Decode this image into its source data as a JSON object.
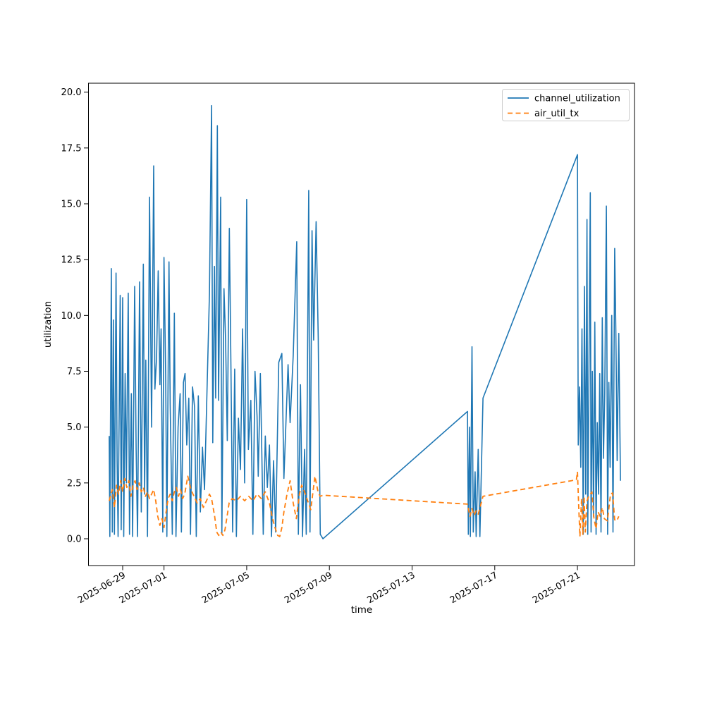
{
  "figure": {
    "background": "#ffffff",
    "border_color": "#000000"
  },
  "chart_data": {
    "type": "line",
    "title": "",
    "xlabel": "time",
    "ylabel": "utilization",
    "grid": false,
    "x_unit": "days since 2025-06-28 00:00",
    "xlim_days": [
      -0.654,
      25.76
    ],
    "ylim": [
      -1.2,
      20.4
    ],
    "x_ticks": [
      {
        "label": "2025-06-29",
        "day": 1
      },
      {
        "label": "2025-07-01",
        "day": 3
      },
      {
        "label": "2025-07-05",
        "day": 7
      },
      {
        "label": "2025-07-09",
        "day": 11
      },
      {
        "label": "2025-07-13",
        "day": 15
      },
      {
        "label": "2025-07-17",
        "day": 19
      },
      {
        "label": "2025-07-21",
        "day": 23
      }
    ],
    "y_ticks": [
      "0.0",
      "2.5",
      "5.0",
      "7.5",
      "10.0",
      "12.5",
      "15.0",
      "17.5",
      "20.0"
    ],
    "y_tick_values": [
      0,
      2.5,
      5,
      7.5,
      10,
      12.5,
      15,
      17.5,
      20
    ],
    "legend": {
      "location": "upper right",
      "entries": [
        "channel_utilization",
        "air_util_tx"
      ]
    },
    "series": [
      {
        "name": "channel_utilization",
        "color": "#1f77b4",
        "style": "solid",
        "points": [
          [
            0.35,
            4.6
          ],
          [
            0.38,
            0.1
          ],
          [
            0.45,
            12.1
          ],
          [
            0.5,
            0.3
          ],
          [
            0.55,
            9.8
          ],
          [
            0.6,
            0.2
          ],
          [
            0.68,
            11.9
          ],
          [
            0.73,
            3.5
          ],
          [
            0.78,
            0.1
          ],
          [
            0.88,
            10.9
          ],
          [
            0.93,
            0.4
          ],
          [
            1.0,
            10.8
          ],
          [
            1.05,
            0.1
          ],
          [
            1.12,
            7.4
          ],
          [
            1.18,
            2.5
          ],
          [
            1.27,
            11.0
          ],
          [
            1.33,
            0.2
          ],
          [
            1.42,
            6.5
          ],
          [
            1.48,
            0.1
          ],
          [
            1.58,
            11.3
          ],
          [
            1.65,
            4.0
          ],
          [
            1.72,
            0.1
          ],
          [
            1.82,
            11.5
          ],
          [
            1.9,
            1.2
          ],
          [
            2.0,
            12.3
          ],
          [
            2.06,
            2.0
          ],
          [
            2.12,
            8.0
          ],
          [
            2.2,
            0.1
          ],
          [
            2.3,
            15.3
          ],
          [
            2.4,
            5.0
          ],
          [
            2.5,
            16.7
          ],
          [
            2.56,
            6.7
          ],
          [
            2.64,
            8.1
          ],
          [
            2.72,
            12.0
          ],
          [
            2.8,
            6.9
          ],
          [
            2.86,
            9.4
          ],
          [
            2.94,
            0.3
          ],
          [
            3.0,
            12.6
          ],
          [
            3.08,
            7.3
          ],
          [
            3.14,
            0.1
          ],
          [
            3.24,
            12.4
          ],
          [
            3.3,
            6.0
          ],
          [
            3.4,
            0.2
          ],
          [
            3.5,
            10.1
          ],
          [
            3.58,
            0.1
          ],
          [
            3.68,
            5.0
          ],
          [
            3.78,
            6.5
          ],
          [
            3.84,
            0.3
          ],
          [
            3.94,
            7.0
          ],
          [
            4.02,
            7.4
          ],
          [
            4.1,
            4.2
          ],
          [
            4.2,
            6.3
          ],
          [
            4.28,
            0.2
          ],
          [
            4.38,
            6.8
          ],
          [
            4.48,
            5.9
          ],
          [
            4.56,
            0.1
          ],
          [
            4.66,
            6.4
          ],
          [
            4.76,
            1.2
          ],
          [
            4.86,
            4.1
          ],
          [
            4.96,
            2.2
          ],
          [
            5.08,
            6.6
          ],
          [
            5.2,
            11.0
          ],
          [
            5.3,
            19.4
          ],
          [
            5.36,
            4.3
          ],
          [
            5.44,
            12.2
          ],
          [
            5.5,
            6.3
          ],
          [
            5.58,
            18.5
          ],
          [
            5.64,
            6.2
          ],
          [
            5.74,
            15.3
          ],
          [
            5.8,
            0.2
          ],
          [
            5.9,
            11.2
          ],
          [
            5.98,
            8.9
          ],
          [
            6.06,
            4.4
          ],
          [
            6.16,
            13.9
          ],
          [
            6.24,
            7.6
          ],
          [
            6.32,
            0.3
          ],
          [
            6.42,
            7.6
          ],
          [
            6.5,
            0.1
          ],
          [
            6.6,
            5.4
          ],
          [
            6.7,
            3.1
          ],
          [
            6.8,
            9.4
          ],
          [
            6.9,
            2.5
          ],
          [
            7.0,
            15.2
          ],
          [
            7.08,
            4.0
          ],
          [
            7.2,
            6.2
          ],
          [
            7.3,
            0.2
          ],
          [
            7.4,
            7.5
          ],
          [
            7.5,
            5.5
          ],
          [
            7.56,
            2.8
          ],
          [
            7.66,
            7.4
          ],
          [
            7.72,
            4.5
          ],
          [
            7.8,
            0.2
          ],
          [
            7.9,
            4.6
          ],
          [
            8.0,
            2.3
          ],
          [
            8.1,
            4.2
          ],
          [
            8.2,
            0.1
          ],
          [
            8.3,
            3.5
          ],
          [
            8.4,
            0.3
          ],
          [
            8.55,
            7.9
          ],
          [
            8.7,
            8.3
          ],
          [
            8.8,
            2.7
          ],
          [
            9.0,
            7.8
          ],
          [
            9.1,
            5.2
          ],
          [
            9.25,
            8.2
          ],
          [
            9.42,
            13.3
          ],
          [
            9.5,
            0.2
          ],
          [
            9.6,
            6.9
          ],
          [
            9.7,
            0.1
          ],
          [
            9.8,
            4.0
          ],
          [
            9.88,
            0.2
          ],
          [
            10.0,
            15.6
          ],
          [
            10.06,
            0.3
          ],
          [
            10.16,
            13.8
          ],
          [
            10.24,
            8.9
          ],
          [
            10.36,
            14.2
          ],
          [
            10.46,
            9.0
          ],
          [
            10.56,
            0.2
          ],
          [
            10.69,
            0.0
          ],
          [
            17.68,
            5.7
          ],
          [
            17.72,
            0.2
          ],
          [
            17.78,
            5.0
          ],
          [
            17.82,
            0.1
          ],
          [
            17.9,
            8.6
          ],
          [
            17.96,
            0.3
          ],
          [
            18.05,
            3.0
          ],
          [
            18.1,
            0.1
          ],
          [
            18.2,
            4.0
          ],
          [
            18.28,
            0.1
          ],
          [
            18.43,
            6.3
          ],
          [
            23.0,
            17.2
          ],
          [
            23.04,
            4.2
          ],
          [
            23.1,
            6.8
          ],
          [
            23.16,
            3.2
          ],
          [
            23.22,
            9.4
          ],
          [
            23.28,
            0.2
          ],
          [
            23.34,
            11.3
          ],
          [
            23.4,
            2.0
          ],
          [
            23.46,
            14.3
          ],
          [
            23.5,
            0.2
          ],
          [
            23.56,
            8.0
          ],
          [
            23.62,
            15.5
          ],
          [
            23.66,
            0.3
          ],
          [
            23.72,
            7.5
          ],
          [
            23.78,
            1.0
          ],
          [
            23.84,
            9.7
          ],
          [
            23.9,
            0.2
          ],
          [
            23.96,
            5.2
          ],
          [
            24.02,
            2.0
          ],
          [
            24.08,
            7.4
          ],
          [
            24.14,
            0.3
          ],
          [
            24.2,
            9.9
          ],
          [
            24.26,
            3.6
          ],
          [
            24.32,
            6.5
          ],
          [
            24.4,
            14.9
          ],
          [
            24.46,
            0.2
          ],
          [
            24.52,
            7.0
          ],
          [
            24.58,
            3.2
          ],
          [
            24.66,
            10.0
          ],
          [
            24.72,
            0.3
          ],
          [
            24.8,
            13.0
          ],
          [
            24.86,
            9.2
          ],
          [
            24.92,
            3.5
          ],
          [
            25.0,
            9.2
          ],
          [
            25.08,
            2.6
          ]
        ]
      },
      {
        "name": "air_util_tx",
        "color": "#ff7f0e",
        "style": "dashed",
        "points": [
          [
            0.35,
            1.7
          ],
          [
            0.5,
            2.2
          ],
          [
            0.6,
            1.4
          ],
          [
            0.7,
            2.4
          ],
          [
            0.8,
            2.0
          ],
          [
            0.9,
            2.6
          ],
          [
            1.0,
            2.1
          ],
          [
            1.1,
            2.7
          ],
          [
            1.2,
            2.3
          ],
          [
            1.3,
            2.6
          ],
          [
            1.4,
            1.9
          ],
          [
            1.5,
            2.4
          ],
          [
            1.6,
            2.6
          ],
          [
            1.7,
            2.2
          ],
          [
            1.8,
            2.5
          ],
          [
            1.9,
            2.1
          ],
          [
            2.0,
            2.3
          ],
          [
            2.1,
            1.9
          ],
          [
            2.2,
            2.1
          ],
          [
            2.3,
            1.8
          ],
          [
            2.4,
            2.0
          ],
          [
            2.5,
            2.2
          ],
          [
            2.6,
            1.7
          ],
          [
            2.7,
            1.0
          ],
          [
            2.8,
            0.6
          ],
          [
            2.9,
            0.9
          ],
          [
            3.0,
            0.5
          ],
          [
            3.1,
            1.2
          ],
          [
            3.2,
            1.8
          ],
          [
            3.3,
            2.0
          ],
          [
            3.4,
            1.7
          ],
          [
            3.5,
            2.1
          ],
          [
            3.6,
            2.3
          ],
          [
            3.7,
            1.9
          ],
          [
            3.8,
            2.2
          ],
          [
            3.9,
            1.8
          ],
          [
            4.0,
            2.0
          ],
          [
            4.15,
            2.8
          ],
          [
            4.3,
            2.2
          ],
          [
            4.45,
            1.9
          ],
          [
            4.6,
            1.6
          ],
          [
            4.75,
            1.8
          ],
          [
            4.9,
            1.4
          ],
          [
            5.05,
            1.7
          ],
          [
            5.2,
            2.0
          ],
          [
            5.3,
            1.8
          ],
          [
            5.45,
            1.0
          ],
          [
            5.55,
            0.3
          ],
          [
            5.65,
            0.15
          ],
          [
            5.75,
            0.3
          ],
          [
            5.85,
            0.15
          ],
          [
            5.95,
            0.4
          ],
          [
            6.05,
            1.0
          ],
          [
            6.15,
            1.6
          ],
          [
            6.3,
            1.8
          ],
          [
            6.5,
            1.7
          ],
          [
            6.7,
            1.9
          ],
          [
            6.9,
            1.7
          ],
          [
            7.1,
            1.9
          ],
          [
            7.3,
            1.7
          ],
          [
            7.5,
            2.0
          ],
          [
            7.7,
            1.8
          ],
          [
            7.9,
            2.1
          ],
          [
            8.1,
            1.6
          ],
          [
            8.25,
            0.9
          ],
          [
            8.37,
            0.5
          ],
          [
            8.5,
            0.15
          ],
          [
            8.6,
            0.1
          ],
          [
            8.7,
            0.5
          ],
          [
            8.8,
            1.2
          ],
          [
            8.95,
            2.0
          ],
          [
            9.1,
            2.6
          ],
          [
            9.25,
            1.6
          ],
          [
            9.4,
            0.9
          ],
          [
            9.55,
            2.0
          ],
          [
            9.66,
            2.4
          ],
          [
            9.8,
            2.1
          ],
          [
            9.95,
            1.7
          ],
          [
            10.1,
            1.3
          ],
          [
            10.3,
            2.8
          ],
          [
            10.45,
            2.1
          ],
          [
            10.55,
            1.9
          ],
          [
            10.69,
            1.95
          ],
          [
            17.68,
            1.55
          ],
          [
            17.8,
            1.0
          ],
          [
            17.9,
            1.35
          ],
          [
            18.0,
            1.05
          ],
          [
            18.1,
            1.25
          ],
          [
            18.2,
            1.1
          ],
          [
            18.43,
            1.9
          ],
          [
            22.7,
            2.6
          ],
          [
            22.95,
            2.65
          ],
          [
            23.0,
            3.0
          ],
          [
            23.06,
            1.5
          ],
          [
            23.12,
            0.1
          ],
          [
            23.2,
            1.8
          ],
          [
            23.26,
            0.2
          ],
          [
            23.32,
            1.9
          ],
          [
            23.38,
            0.3
          ],
          [
            23.46,
            1.7
          ],
          [
            23.54,
            1.9
          ],
          [
            23.62,
            2.0
          ],
          [
            23.7,
            2.1
          ],
          [
            23.8,
            0.9
          ],
          [
            23.9,
            0.45
          ],
          [
            24.0,
            1.2
          ],
          [
            24.1,
            1.0
          ],
          [
            24.2,
            1.4
          ],
          [
            24.3,
            0.9
          ],
          [
            24.45,
            0.8
          ],
          [
            24.6,
            2.0
          ],
          [
            24.7,
            2.05
          ],
          [
            24.8,
            0.85
          ],
          [
            24.9,
            0.8
          ],
          [
            25.0,
            1.0
          ]
        ]
      }
    ]
  }
}
